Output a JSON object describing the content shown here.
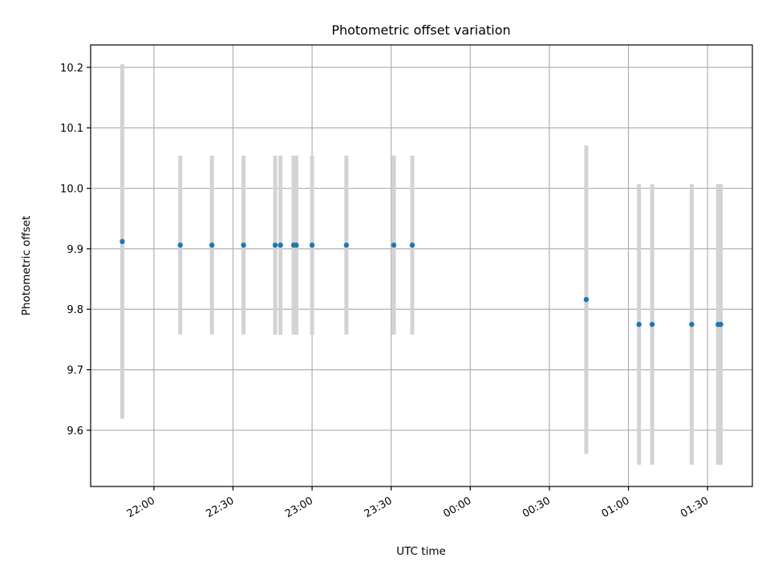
{
  "chart_data": {
    "type": "scatter",
    "title": "Photometric offset variation",
    "xlabel": "UTC time",
    "ylabel": "Photometric offset",
    "x_ticks": [
      "22:00",
      "22:30",
      "23:00",
      "23:30",
      "00:00",
      "00:30",
      "01:00",
      "01:30"
    ],
    "y_ticks": [
      "9.6",
      "9.7",
      "9.8",
      "9.9",
      "10.0",
      "10.1",
      "10.2"
    ],
    "xlim": [
      "21:36",
      "01:47"
    ],
    "ylim": [
      9.507,
      10.237
    ],
    "grid": true,
    "colors": {
      "marker": "#1f77b4",
      "error_bar": "#d3d3d3",
      "grid": "#b0b0b0"
    },
    "points": [
      {
        "x": "21:48",
        "y": 9.912,
        "yerr": 0.293
      },
      {
        "x": "22:10",
        "y": 9.906,
        "yerr": 0.148
      },
      {
        "x": "22:22",
        "y": 9.906,
        "yerr": 0.148
      },
      {
        "x": "22:34",
        "y": 9.906,
        "yerr": 0.148
      },
      {
        "x": "22:46",
        "y": 9.906,
        "yerr": 0.148
      },
      {
        "x": "22:48",
        "y": 9.906,
        "yerr": 0.148
      },
      {
        "x": "22:53",
        "y": 9.906,
        "yerr": 0.148
      },
      {
        "x": "22:54",
        "y": 9.906,
        "yerr": 0.148
      },
      {
        "x": "23:00",
        "y": 9.906,
        "yerr": 0.148
      },
      {
        "x": "23:13",
        "y": 9.906,
        "yerr": 0.148
      },
      {
        "x": "23:31",
        "y": 9.906,
        "yerr": 0.148
      },
      {
        "x": "23:38",
        "y": 9.906,
        "yerr": 0.148
      },
      {
        "x": "00:44",
        "y": 9.816,
        "yerr": 0.255
      },
      {
        "x": "01:04",
        "y": 9.775,
        "yerr": 0.232
      },
      {
        "x": "01:09",
        "y": 9.775,
        "yerr": 0.232
      },
      {
        "x": "01:24",
        "y": 9.775,
        "yerr": 0.232
      },
      {
        "x": "01:34",
        "y": 9.775,
        "yerr": 0.232
      },
      {
        "x": "01:35",
        "y": 9.775,
        "yerr": 0.232
      }
    ]
  }
}
